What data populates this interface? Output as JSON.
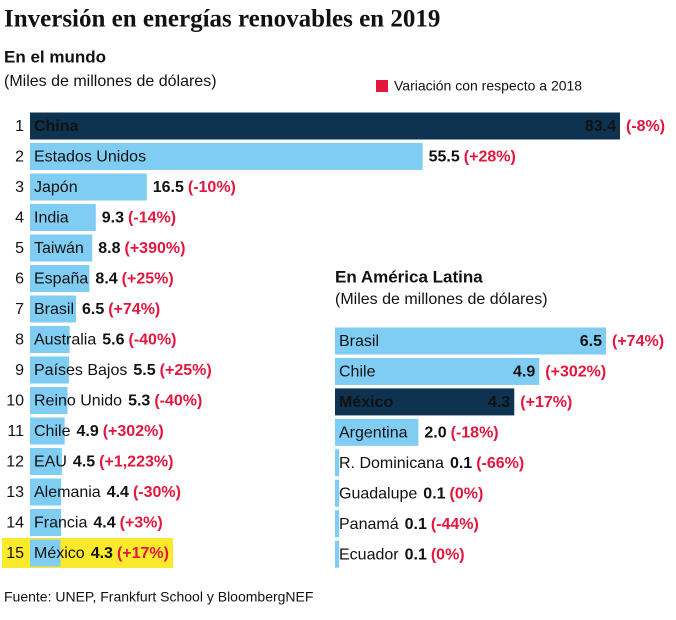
{
  "title": "Inversión en energías renovables en 2019",
  "source": "Fuente: UNEP, Frankfurt School y BloombergNEF",
  "legend": {
    "label": "Variación con respecto a 2018",
    "color": "#e3173e"
  },
  "chart_data": [
    {
      "type": "bar",
      "orientation": "horizontal",
      "title": "En el mundo",
      "subtitle": "(Miles de millones de dólares)",
      "ranks": [
        "1",
        "2",
        "3",
        "4",
        "5",
        "6",
        "7",
        "8",
        "9",
        "10",
        "11",
        "12",
        "13",
        "14",
        "15"
      ],
      "categories": [
        "China",
        "Estados Unidos",
        "Japón",
        "India",
        "Taiwán",
        "España",
        "Brasil",
        "Australia",
        "Países Bajos",
        "Reino Unido",
        "Chile",
        "EAU",
        "Alemania",
        "Francia",
        "México"
      ],
      "values": [
        83.4,
        55.5,
        16.5,
        9.3,
        8.8,
        8.4,
        6.5,
        5.6,
        5.5,
        5.3,
        4.9,
        4.5,
        4.4,
        4.4,
        4.3
      ],
      "change_labels": [
        "(-8%)",
        "(+28%)",
        "(-10%)",
        "(-14%)",
        "(+390%)",
        "(+25%)",
        "(+74%)",
        "(-40%)",
        "(+25%)",
        "(-40%)",
        "(+302%)",
        "(+1,223%)",
        "(-30%)",
        "(+3%)",
        "(+17%)"
      ],
      "xlim": [
        0,
        83.4
      ],
      "color": "#7fcdf2",
      "highlight": {
        "index": 0,
        "color": "#0e3350"
      },
      "row_highlight": {
        "index": 14,
        "color": "#fbe92c"
      },
      "value_inside": false
    },
    {
      "type": "bar",
      "orientation": "horizontal",
      "title": "En América Latina",
      "subtitle": "(Miles de millones de dólares)",
      "categories": [
        "Brasil",
        "Chile",
        "México",
        "Argentina",
        "R. Dominicana",
        "Guadalupe",
        "Panamá",
        "Ecuador"
      ],
      "values": [
        6.5,
        4.9,
        4.3,
        2.0,
        0.1,
        0.1,
        0.1,
        0.1
      ],
      "value_labels": [
        "6.5",
        "4.9",
        "4.3",
        "2.0",
        "0.1",
        "0.1",
        "0.1",
        "0.1"
      ],
      "change_labels": [
        "(+74%)",
        "(+302%)",
        "(+17%)",
        "(-18%)",
        "(-66%)",
        "(0%)",
        "(-44%)",
        "(0%)"
      ],
      "xlim": [
        0,
        6.5
      ],
      "color": "#7fcdf2",
      "highlight": {
        "index": 2,
        "color": "#0e3350"
      },
      "value_inside": true
    }
  ]
}
